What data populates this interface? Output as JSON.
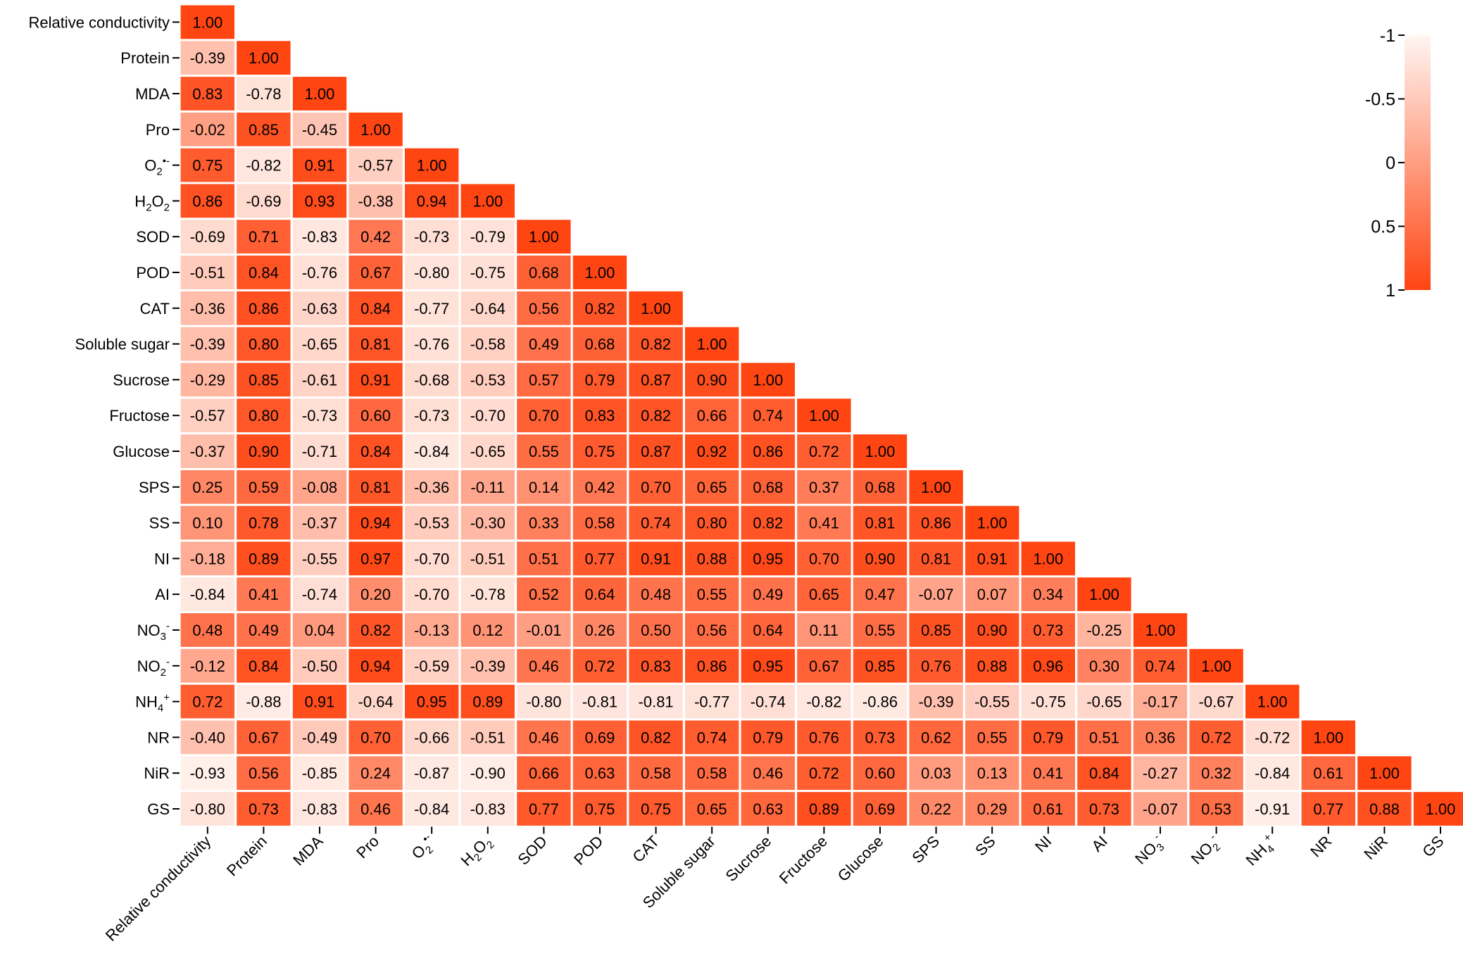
{
  "chart_data": {
    "type": "heatmap",
    "variables": [
      "Relative conductivity",
      "Protein",
      "MDA",
      "Pro",
      "O2•-",
      "H2O2",
      "SOD",
      "POD",
      "CAT",
      "Soluble sugar",
      "Sucrose",
      "Fructose",
      "Glucose",
      "SPS",
      "SS",
      "NI",
      "AI",
      "NO3-",
      "NO2-",
      "NH4+",
      "NR",
      "NiR",
      "GS"
    ],
    "matrix": [
      [
        1.0
      ],
      [
        -0.39,
        1.0
      ],
      [
        0.83,
        -0.78,
        1.0
      ],
      [
        -0.02,
        0.85,
        -0.45,
        1.0
      ],
      [
        0.75,
        -0.82,
        0.91,
        -0.57,
        1.0
      ],
      [
        0.86,
        -0.69,
        0.93,
        -0.38,
        0.94,
        1.0
      ],
      [
        -0.69,
        0.71,
        -0.83,
        0.42,
        -0.73,
        -0.79,
        1.0
      ],
      [
        -0.51,
        0.84,
        -0.76,
        0.67,
        -0.8,
        -0.75,
        0.68,
        1.0
      ],
      [
        -0.36,
        0.86,
        -0.63,
        0.84,
        -0.77,
        -0.64,
        0.56,
        0.82,
        1.0
      ],
      [
        -0.39,
        0.8,
        -0.65,
        0.81,
        -0.76,
        -0.58,
        0.49,
        0.68,
        0.82,
        1.0
      ],
      [
        -0.29,
        0.85,
        -0.61,
        0.91,
        -0.68,
        -0.53,
        0.57,
        0.79,
        0.87,
        0.9,
        1.0
      ],
      [
        -0.57,
        0.8,
        -0.73,
        0.6,
        -0.73,
        -0.7,
        0.7,
        0.83,
        0.82,
        0.66,
        0.74,
        1.0
      ],
      [
        -0.37,
        0.9,
        -0.71,
        0.84,
        -0.84,
        -0.65,
        0.55,
        0.75,
        0.87,
        0.92,
        0.86,
        0.72,
        1.0
      ],
      [
        0.25,
        0.59,
        -0.08,
        0.81,
        -0.36,
        -0.11,
        0.14,
        0.42,
        0.7,
        0.65,
        0.68,
        0.37,
        0.68,
        1.0
      ],
      [
        0.1,
        0.78,
        -0.37,
        0.94,
        -0.53,
        -0.3,
        0.33,
        0.58,
        0.74,
        0.8,
        0.82,
        0.41,
        0.81,
        0.86,
        1.0
      ],
      [
        -0.18,
        0.89,
        -0.55,
        0.97,
        -0.7,
        -0.51,
        0.51,
        0.77,
        0.91,
        0.88,
        0.95,
        0.7,
        0.9,
        0.81,
        0.91,
        1.0
      ],
      [
        -0.84,
        0.41,
        -0.74,
        0.2,
        -0.7,
        -0.78,
        0.52,
        0.64,
        0.48,
        0.55,
        0.49,
        0.65,
        0.47,
        -0.07,
        0.07,
        0.34,
        1.0
      ],
      [
        0.48,
        0.49,
        0.04,
        0.82,
        -0.13,
        0.12,
        -0.01,
        0.26,
        0.5,
        0.56,
        0.64,
        0.11,
        0.55,
        0.85,
        0.9,
        0.73,
        -0.25,
        1.0
      ],
      [
        -0.12,
        0.84,
        -0.5,
        0.94,
        -0.59,
        -0.39,
        0.46,
        0.72,
        0.83,
        0.86,
        0.95,
        0.67,
        0.85,
        0.76,
        0.88,
        0.96,
        0.3,
        0.74,
        1.0
      ],
      [
        0.72,
        -0.88,
        0.91,
        -0.64,
        0.95,
        0.89,
        -0.8,
        -0.81,
        -0.81,
        -0.77,
        -0.74,
        -0.82,
        -0.86,
        -0.39,
        -0.55,
        -0.75,
        -0.65,
        -0.17,
        -0.67,
        1.0
      ],
      [
        -0.4,
        0.67,
        -0.49,
        0.7,
        -0.66,
        -0.51,
        0.46,
        0.69,
        0.82,
        0.74,
        0.79,
        0.76,
        0.73,
        0.62,
        0.55,
        0.79,
        0.51,
        0.36,
        0.72,
        -0.72,
        1.0
      ],
      [
        -0.93,
        0.56,
        -0.85,
        0.24,
        -0.87,
        -0.9,
        0.66,
        0.63,
        0.58,
        0.58,
        0.46,
        0.72,
        0.6,
        0.03,
        0.13,
        0.41,
        0.84,
        -0.27,
        0.32,
        -0.84,
        0.61,
        1.0
      ],
      [
        -0.8,
        0.73,
        -0.83,
        0.46,
        -0.84,
        -0.83,
        0.77,
        0.75,
        0.75,
        0.65,
        0.63,
        0.89,
        0.69,
        0.22,
        0.29,
        0.61,
        0.73,
        -0.07,
        0.53,
        -0.91,
        0.77,
        0.88,
        1.0
      ]
    ],
    "colorbar": {
      "ticks": [
        "-1",
        "-0.5",
        "0",
        "0.5",
        "1"
      ],
      "low_color": "#fff6f2",
      "high_color": "#ff4512"
    },
    "cell_text_colors": {
      "light": "#ffffff",
      "dark": "#1a1a1a"
    }
  }
}
